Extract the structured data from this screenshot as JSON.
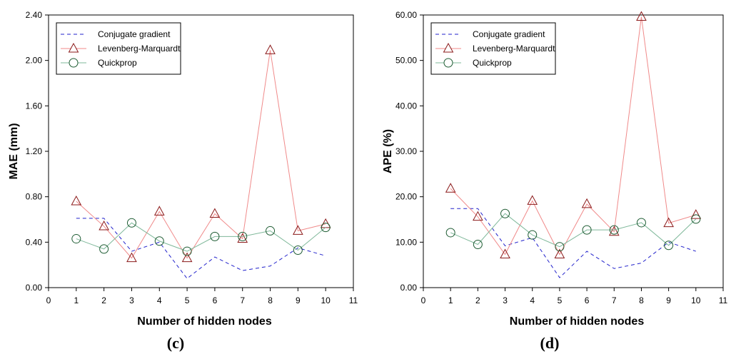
{
  "chart_data": [
    {
      "type": "line",
      "panel_label": "(c)",
      "title": "",
      "xlabel": "Number of hidden nodes",
      "ylabel": "MAE (mm)",
      "xlim": [
        0,
        11
      ],
      "ylim": [
        0,
        2.4
      ],
      "xticks": [
        "0",
        "1",
        "2",
        "3",
        "4",
        "5",
        "6",
        "7",
        "8",
        "9",
        "10",
        "11"
      ],
      "yticks": [
        "0.00",
        "0.40",
        "0.80",
        "1.20",
        "1.60",
        "2.00",
        "2.40"
      ],
      "legend_position": "top-left",
      "x": [
        1,
        2,
        3,
        4,
        5,
        6,
        7,
        8,
        9,
        10
      ],
      "series": [
        {
          "name": "Conjugate gradient",
          "color": "#2222cc",
          "style": "dashed",
          "marker": "none",
          "values": [
            0.61,
            0.61,
            0.32,
            0.4,
            0.08,
            0.27,
            0.15,
            0.19,
            0.35,
            0.28
          ]
        },
        {
          "name": "Levenberg-Marquardt",
          "color": "#f08a8a",
          "marker_color": "#8b1a1a",
          "style": "solid",
          "marker": "triangle",
          "values": [
            0.76,
            0.54,
            0.26,
            0.67,
            0.26,
            0.65,
            0.43,
            2.09,
            0.5,
            0.56
          ]
        },
        {
          "name": "Quickprop",
          "color": "#7fb89a",
          "marker_color": "#1e5c33",
          "style": "solid",
          "marker": "circle",
          "values": [
            0.43,
            0.34,
            0.57,
            0.41,
            0.32,
            0.45,
            0.45,
            0.5,
            0.33,
            0.53
          ]
        }
      ]
    },
    {
      "type": "line",
      "panel_label": "(d)",
      "title": "",
      "xlabel": "Number of hidden nodes",
      "ylabel": "APE (%)",
      "xlim": [
        0,
        11
      ],
      "ylim": [
        0,
        60
      ],
      "xticks": [
        "0",
        "1",
        "2",
        "3",
        "4",
        "5",
        "6",
        "7",
        "8",
        "9",
        "10",
        "11"
      ],
      "yticks": [
        "0.00",
        "10.00",
        "20.00",
        "30.00",
        "40.00",
        "50.00",
        "60.00"
      ],
      "legend_position": "top-left",
      "x": [
        1,
        2,
        3,
        4,
        5,
        6,
        7,
        8,
        9,
        10
      ],
      "series": [
        {
          "name": "Conjugate gradient",
          "color": "#2222cc",
          "style": "dashed",
          "marker": "none",
          "values": [
            17.4,
            17.4,
            9.2,
            11.0,
            2.2,
            8.0,
            4.2,
            5.4,
            10.0,
            8.0
          ]
        },
        {
          "name": "Levenberg-Marquardt",
          "color": "#f08a8a",
          "marker_color": "#8b1a1a",
          "style": "solid",
          "marker": "triangle",
          "values": [
            21.8,
            15.6,
            7.3,
            19.1,
            7.3,
            18.4,
            12.3,
            59.6,
            14.2,
            16.0
          ]
        },
        {
          "name": "Quickprop",
          "color": "#7fb89a",
          "marker_color": "#1e5c33",
          "style": "solid",
          "marker": "circle",
          "values": [
            12.1,
            9.5,
            16.3,
            11.6,
            9.0,
            12.7,
            12.7,
            14.3,
            9.3,
            15.1
          ]
        }
      ]
    }
  ]
}
